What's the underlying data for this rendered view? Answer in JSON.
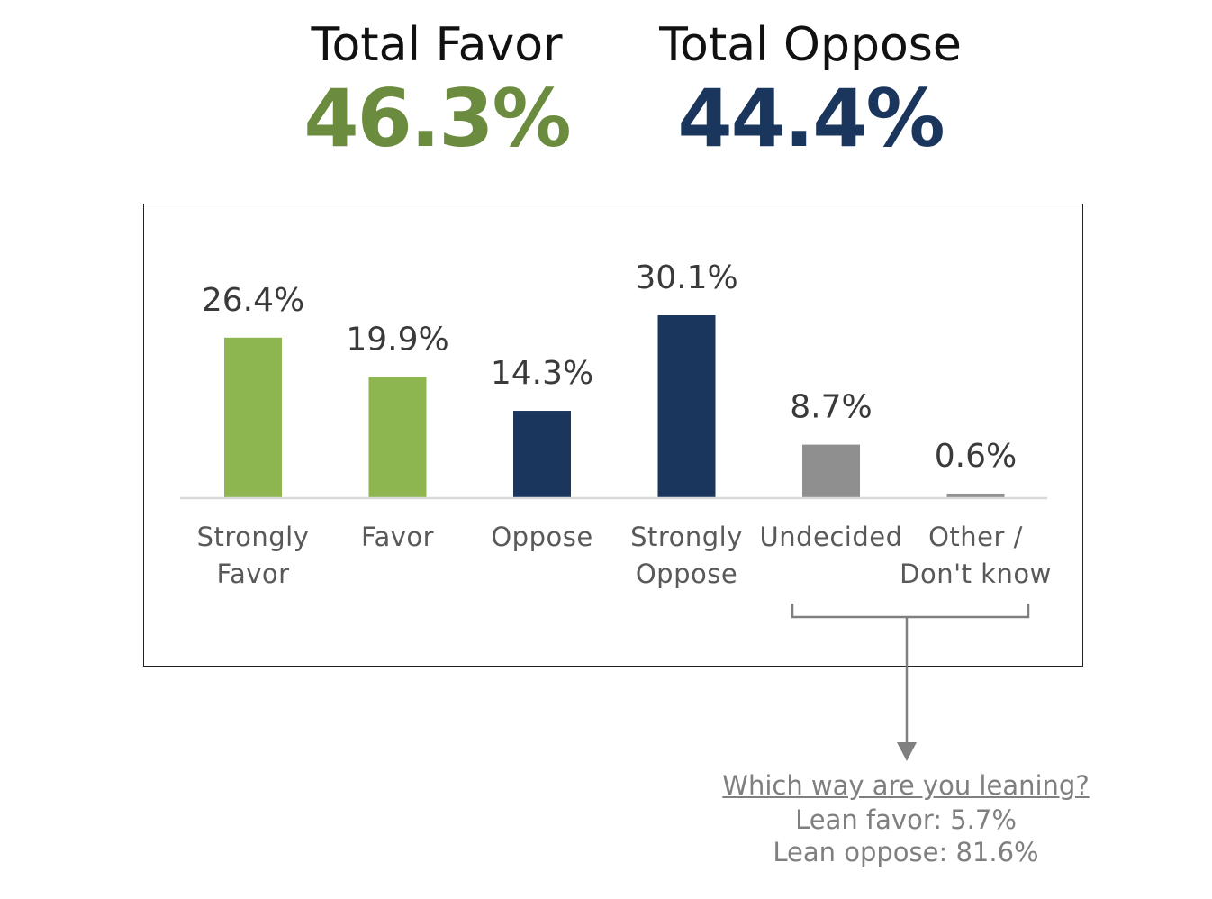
{
  "totals": {
    "favor": {
      "label": "Total Favor",
      "value": "46.3%",
      "color": "#6b8c3e"
    },
    "oppose": {
      "label": "Total Oppose",
      "value": "44.4%",
      "color": "#1b365d"
    }
  },
  "chart_data": {
    "type": "bar",
    "categories": [
      [
        "Strongly",
        "Favor"
      ],
      [
        "Favor"
      ],
      [
        "Oppose"
      ],
      [
        "Strongly",
        "Oppose"
      ],
      [
        "Undecided"
      ],
      [
        "Other /",
        "Don't know"
      ]
    ],
    "values": [
      26.4,
      19.9,
      14.3,
      30.1,
      8.7,
      0.6
    ],
    "value_labels": [
      "26.4%",
      "19.9%",
      "14.3%",
      "30.1%",
      "8.7%",
      "0.6%"
    ],
    "colors": [
      "#8db651",
      "#8db651",
      "#1b365d",
      "#1b365d",
      "#8f8f8f",
      "#8f8f8f"
    ],
    "ylim": [
      0,
      34
    ],
    "grid": false,
    "legend": "none",
    "title": "",
    "xlabel": "",
    "ylabel": ""
  },
  "followup": {
    "question": "Which way are you leaning?",
    "lean_favor": "Lean favor: 5.7%",
    "lean_oppose": "Lean oppose:  81.6%"
  }
}
